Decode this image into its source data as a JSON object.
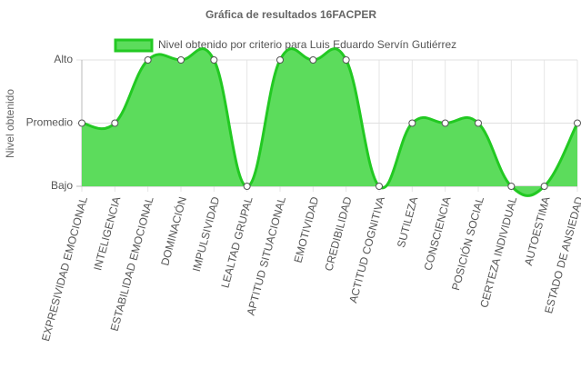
{
  "chart_data": {
    "type": "line",
    "title": "Gráfica de resultados 16FACPER",
    "y_label": "Nivel obtenido",
    "categories": [
      "EXPRESIVIDAD EMOCIONAL",
      "INTELIGENCIA",
      "ESTABILIDAD EMOCIONAL",
      "DOMINACIÓN",
      "IMPULSIVIDAD",
      "LEALTAD GRUPAL",
      "APTITUD SITUACIONAL",
      "EMOTIVIDAD",
      "CREDIBILIDAD",
      "ACTITUD COGNITIVA",
      "SUTILEZA",
      "CONSCIENCIA",
      "POSICIÓN SOCIAL",
      "CERTEZA INDIVIDUAL",
      "AUTOESTIMA",
      "ESTADO DE ANSIEDAD"
    ],
    "series": [
      {
        "name": "Nivel obtenido por criterio para Luis Eduardo Servín Gutiérrez",
        "color": "#22c922",
        "fill": "#5cdc5c",
        "values": [
          2,
          2,
          3,
          3,
          3,
          1,
          3,
          3,
          3,
          1,
          2,
          2,
          2,
          1,
          1,
          2
        ]
      }
    ],
    "ylim": [
      1,
      3
    ],
    "yticks": [
      {
        "value": 1,
        "label": "Bajo"
      },
      {
        "value": 2,
        "label": "Promedio"
      },
      {
        "value": 3,
        "label": "Alto"
      }
    ],
    "grid": true
  }
}
